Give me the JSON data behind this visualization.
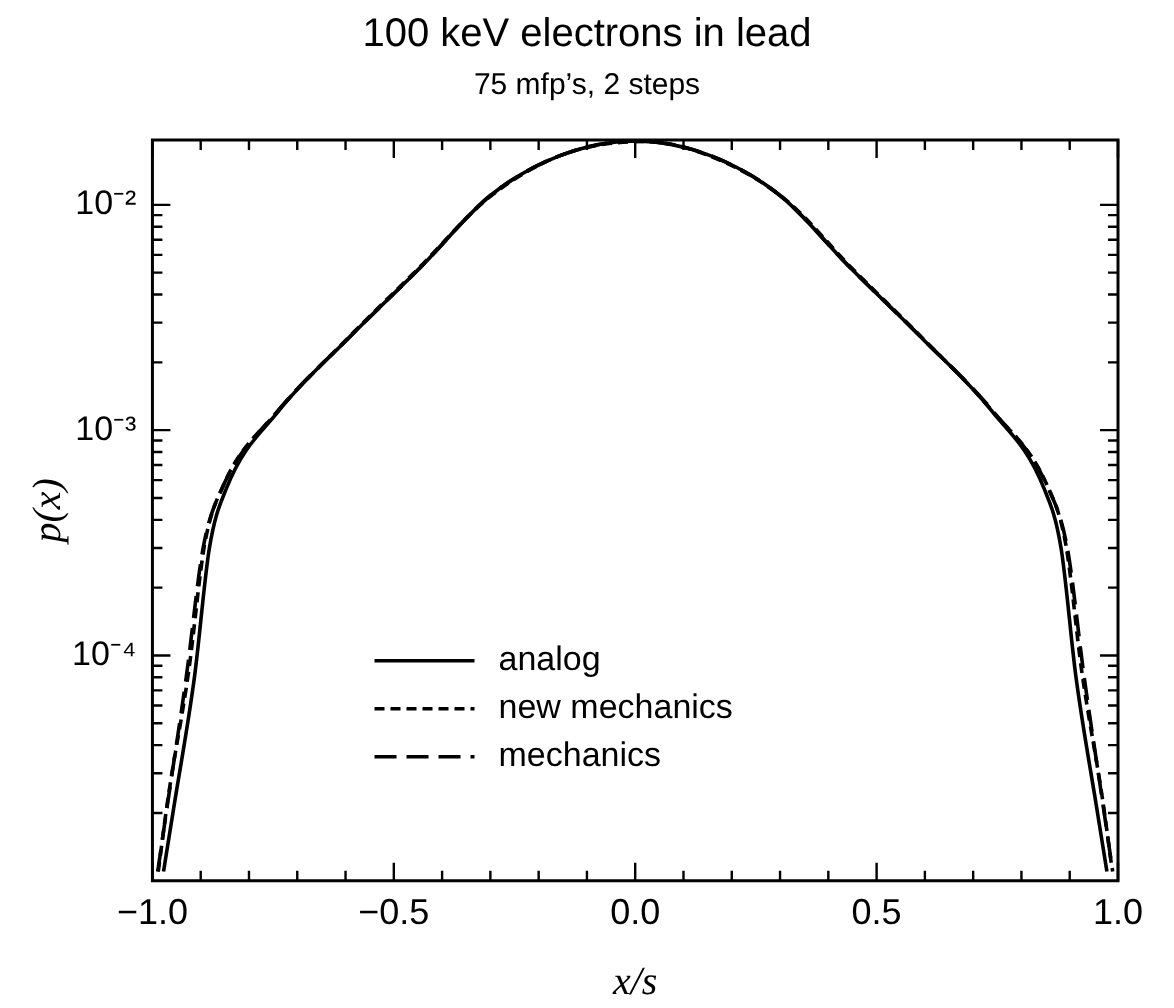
{
  "chart_data": {
    "type": "line",
    "title": "100 keV electrons in lead",
    "subtitle": "75 mfp’s, 2 steps",
    "xlabel": "x/s",
    "ylabel": "p(x)",
    "log": "y",
    "grid": false,
    "legend": "bottom",
    "marker": "none",
    "xlim": [
      -1,
      1
    ],
    "ylim": [
      1e-05,
      0.0194
    ],
    "xticks": [
      {
        "value": -1,
        "label": "−1.0"
      },
      {
        "value": -0.9,
        "label": null
      },
      {
        "value": -0.8,
        "label": null
      },
      {
        "value": -0.7,
        "label": null
      },
      {
        "value": -0.6,
        "label": null
      },
      {
        "value": -0.5,
        "label": "−0.5"
      },
      {
        "value": -0.4,
        "label": null
      },
      {
        "value": -0.3,
        "label": null
      },
      {
        "value": -0.2,
        "label": null
      },
      {
        "value": -0.1,
        "label": null
      },
      {
        "value": 0,
        "label": "0.0"
      },
      {
        "value": 0.1,
        "label": null
      },
      {
        "value": 0.2,
        "label": null
      },
      {
        "value": 0.3,
        "label": null
      },
      {
        "value": 0.4,
        "label": null
      },
      {
        "value": 0.5,
        "label": "0.5"
      },
      {
        "value": 0.6,
        "label": null
      },
      {
        "value": 0.7,
        "label": null
      },
      {
        "value": 0.8,
        "label": null
      },
      {
        "value": 0.9,
        "label": null
      },
      {
        "value": 1,
        "label": "1.0"
      }
    ],
    "yticks": [
      {
        "value": 2e-05,
        "label": null
      },
      {
        "value": 3e-05,
        "label": null
      },
      {
        "value": 4e-05,
        "label": null
      },
      {
        "value": 5e-05,
        "label": null
      },
      {
        "value": 6e-05,
        "label": null
      },
      {
        "value": 7e-05,
        "label": null
      },
      {
        "value": 8e-05,
        "label": null
      },
      {
        "value": 9e-05,
        "label": null
      },
      {
        "value": 0.0001,
        "label": "10⁻⁴"
      },
      {
        "value": 0.0002,
        "label": null
      },
      {
        "value": 0.0003,
        "label": null
      },
      {
        "value": 0.0004,
        "label": null
      },
      {
        "value": 0.0005,
        "label": null
      },
      {
        "value": 0.0006,
        "label": null
      },
      {
        "value": 0.0007,
        "label": null
      },
      {
        "value": 0.0008,
        "label": null
      },
      {
        "value": 0.0009,
        "label": null
      },
      {
        "value": 0.001,
        "label": "10⁻³"
      },
      {
        "value": 0.002,
        "label": null
      },
      {
        "value": 0.003,
        "label": null
      },
      {
        "value": 0.004,
        "label": null
      },
      {
        "value": 0.005,
        "label": null
      },
      {
        "value": 0.006,
        "label": null
      },
      {
        "value": 0.007,
        "label": null
      },
      {
        "value": 0.008,
        "label": null
      },
      {
        "value": 0.009,
        "label": null
      },
      {
        "value": 0.01,
        "label": "10⁻²"
      }
    ],
    "series": [
      {
        "name": "analog",
        "color": "#000000",
        "line_style": "solid",
        "x": [
          -0.977,
          -0.956,
          -0.913,
          -0.882,
          -0.847,
          -0.738,
          -0.594,
          -0.445,
          -0.3,
          -0.157,
          0,
          0.157,
          0.3,
          0.445,
          0.594,
          0.738,
          0.847,
          0.882,
          0.913,
          0.956,
          0.977
        ],
        "values": [
          1.1e-05,
          2.1e-05,
          8e-05,
          0.0003,
          0.00055,
          0.00122,
          0.00256,
          0.00527,
          0.011,
          0.0165,
          0.0192,
          0.0165,
          0.011,
          0.00527,
          0.00256,
          0.00122,
          0.00055,
          0.0003,
          8e-05,
          2.1e-05,
          1.1e-05
        ]
      },
      {
        "name": "new mechanics",
        "color": "#000000",
        "line_style": "dashed",
        "x": [
          -0.988,
          -0.968,
          -0.925,
          -0.892,
          -0.853,
          -0.742,
          -0.6,
          -0.45,
          -0.3,
          -0.15,
          0.02,
          0.16,
          0.31,
          0.45,
          0.6,
          0.742,
          0.853,
          0.892,
          0.925,
          0.968,
          0.986
        ],
        "values": [
          1.1e-05,
          2.3e-05,
          8.5e-05,
          0.00031,
          0.00057,
          0.0012,
          0.0025,
          0.0052,
          0.0109,
          0.0167,
          0.0191,
          0.0163,
          0.0106,
          0.0052,
          0.0025,
          0.0012,
          0.00057,
          0.00031,
          8.5e-05,
          2.3e-05,
          1.2e-05
        ]
      },
      {
        "name": "mechanics",
        "color": "#000000",
        "line_style": "longdash",
        "x": [
          -0.989,
          -0.97,
          -0.93,
          -0.895,
          -0.856,
          -0.74,
          -0.594,
          -0.445,
          -0.3,
          -0.157,
          0,
          0.157,
          0.3,
          0.445,
          0.594,
          0.74,
          0.856,
          0.895,
          0.93,
          0.97,
          0.989
        ],
        "values": [
          1.1e-05,
          2.1e-05,
          8e-05,
          0.0003,
          0.00055,
          0.00122,
          0.00256,
          0.00527,
          0.011,
          0.0165,
          0.0192,
          0.0165,
          0.011,
          0.00527,
          0.00256,
          0.00122,
          0.00055,
          0.0003,
          8e-05,
          2.1e-05,
          1.1e-05
        ]
      }
    ]
  }
}
